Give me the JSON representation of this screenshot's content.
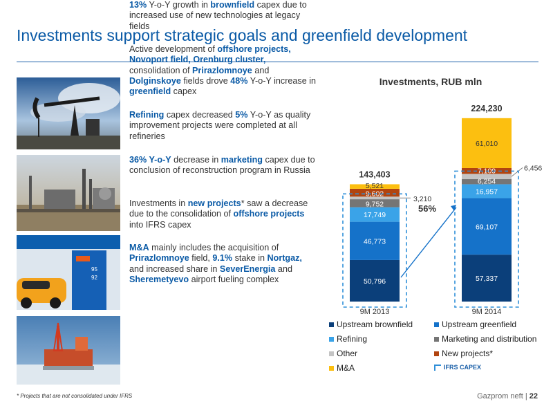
{
  "title": "Investments support strategic goals and greenfield development",
  "paragraphs": {
    "p1": [
      {
        "t": "13%",
        "h": true
      },
      {
        "t": " Y-o-Y growth in "
      },
      {
        "t": "brownfield",
        "h": true
      },
      {
        "t": " capex due to increased use of new technologies at legacy fields"
      }
    ],
    "p2": [
      {
        "t": "Active development of "
      },
      {
        "t": "offshore projects, Novoport field, Orenburg cluster,",
        "h": true
      },
      {
        "t": " consolidation of "
      },
      {
        "t": "Prirazlomnoye",
        "h": true
      },
      {
        "t": " and "
      },
      {
        "t": "Dolginskoye",
        "h": true
      },
      {
        "t": " fields drove "
      },
      {
        "t": "48%",
        "h": true
      },
      {
        "t": " Y-o-Y increase in "
      },
      {
        "t": "greenfield",
        "h": true
      },
      {
        "t": " capex"
      }
    ],
    "p3": [
      {
        "t": "Refining",
        "h": true
      },
      {
        "t": " capex decreased "
      },
      {
        "t": "5%",
        "h": true
      },
      {
        "t": " Y-o-Y as quality improvement projects were completed at all refineries"
      }
    ],
    "p4": [
      {
        "t": "36% Y-o-Y",
        "h": true
      },
      {
        "t": " decrease in "
      },
      {
        "t": "marketing",
        "h": true
      },
      {
        "t": " capex due to conclusion of reconstruction program in Russia"
      }
    ],
    "p5": [
      {
        "t": "Investments in "
      },
      {
        "t": "new projects",
        "h": true
      },
      {
        "t": "* saw a decrease due to the consolidation of "
      },
      {
        "t": "offshore projects",
        "h": true
      },
      {
        "t": " into IFRS capex"
      }
    ],
    "p6": [
      {
        "t": "M&A",
        "h": true
      },
      {
        "t": " mainly includes the acquisition of "
      },
      {
        "t": "Prirazlomnoye",
        "h": true
      },
      {
        "t": " field, "
      },
      {
        "t": "9.1%",
        "h": true
      },
      {
        "t": " stake in "
      },
      {
        "t": "Nortgaz,",
        "h": true
      },
      {
        "t": " and increased share in "
      },
      {
        "t": "SeverEnergia",
        "h": true
      },
      {
        "t": " and "
      },
      {
        "t": "Sheremetyevo",
        "h": true
      },
      {
        "t": " airport fueling complex"
      }
    ]
  },
  "photos": {
    "photo1": "oil-pumpjack-image",
    "photo2": "refinery-image",
    "photo3": "fuel-station-image",
    "photo4": "offshore-platform-image"
  },
  "chart_data": {
    "type": "bar",
    "stacked": true,
    "title": "Investments, RUB mln",
    "categories": [
      "9M 2013",
      "9M 2014"
    ],
    "totals": [
      "143,403",
      "224,230"
    ],
    "series": [
      {
        "name": "Upstream brownfield",
        "color": "#0b3f7a",
        "values": [
          50796,
          57337
        ],
        "labels": [
          "50,796",
          "57,337"
        ]
      },
      {
        "name": "Upstream greenfield",
        "color": "#1572c9",
        "values": [
          46773,
          69107
        ],
        "labels": [
          "46,773",
          "69,107"
        ]
      },
      {
        "name": "Refining",
        "color": "#3aa3e8",
        "values": [
          17749,
          16957
        ],
        "labels": [
          "17,749",
          "16,957"
        ]
      },
      {
        "name": "Marketing and distribution",
        "color": "#757575",
        "values": [
          9752,
          6254
        ],
        "labels": [
          "9,752",
          "6,254"
        ]
      },
      {
        "name": "Other",
        "color": "#c4c4c4",
        "values": [
          3210,
          6456
        ],
        "labels": [
          "3,210",
          "6,456"
        ]
      },
      {
        "name": "New projects*",
        "color": "#b1440f",
        "values": [
          9602,
          7109
        ],
        "labels": [
          "9,602",
          "7,109"
        ]
      },
      {
        "name": "M&A",
        "color": "#fcbf10",
        "values": [
          5521,
          61010
        ],
        "labels": [
          "5,521",
          "61,010"
        ]
      }
    ],
    "growth_label": "56%",
    "ifrs_label": "IFRS CAPEX"
  },
  "footnote": "* Projects that are not consolidated under IFRS",
  "footer": {
    "company": "Gazprom neft |",
    "page": "22"
  }
}
